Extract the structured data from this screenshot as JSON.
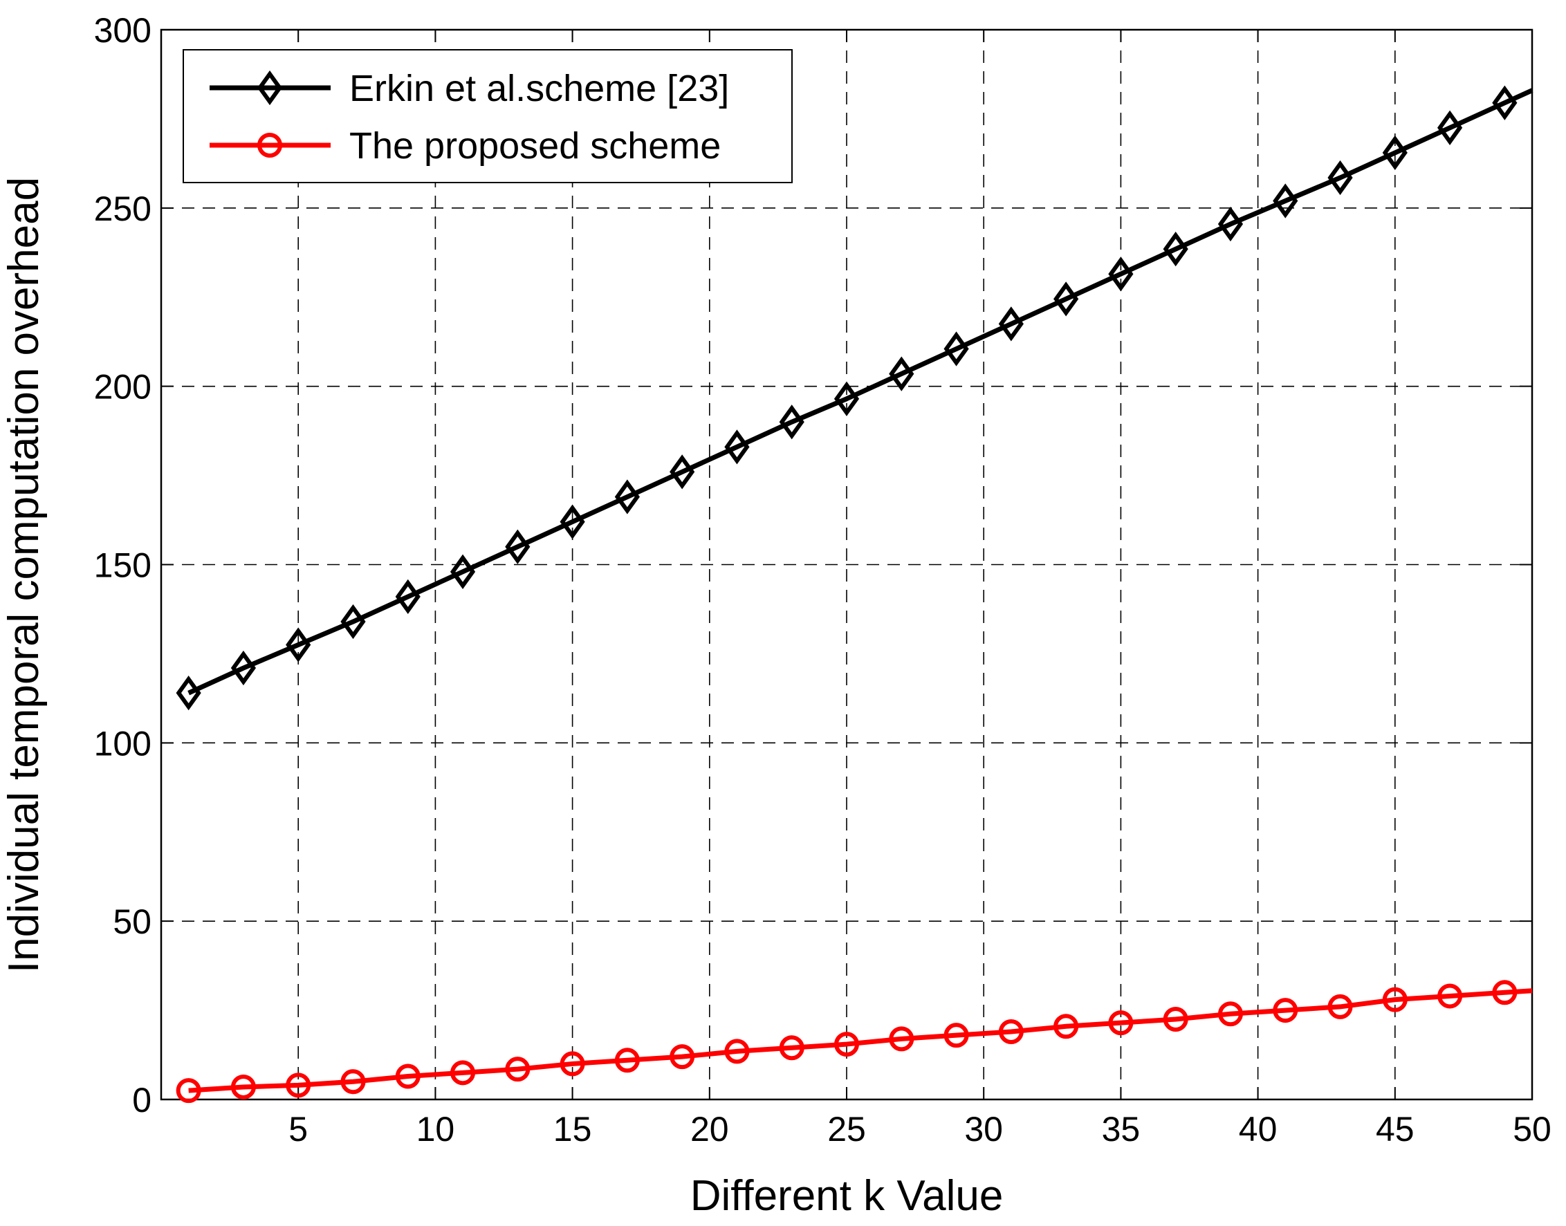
{
  "chart_data": {
    "type": "line",
    "title": "",
    "xlabel": "Different k Value",
    "ylabel": "Individual temporal computation overhead",
    "xlim": [
      0,
      50
    ],
    "ylim": [
      0,
      300
    ],
    "xticks": [
      5,
      10,
      15,
      20,
      25,
      30,
      35,
      40,
      45,
      50
    ],
    "xtick_labels": [
      "5",
      "10",
      "15",
      "20",
      "25",
      "30",
      "35",
      "40",
      "45",
      "50"
    ],
    "yticks": [
      0,
      50,
      100,
      150,
      200,
      250,
      300
    ],
    "ytick_labels": [
      "0",
      "50",
      "100",
      "150",
      "200",
      "250",
      "300"
    ],
    "grid": true,
    "legend_position": "top-left",
    "series": [
      {
        "name": "Erkin et al.scheme [23]",
        "color": "#000000",
        "marker": "diamond",
        "x": [
          1,
          3,
          5,
          7,
          9,
          11,
          13,
          15,
          17,
          19,
          21,
          23,
          25,
          27,
          29,
          31,
          33,
          35,
          37,
          39,
          41,
          43,
          45,
          47,
          49,
          50
        ],
        "y": [
          114,
          121,
          127.5,
          134,
          141,
          148,
          155,
          162,
          169,
          176,
          183,
          190,
          196.5,
          203.5,
          210.5,
          217.5,
          224.5,
          231.5,
          238.5,
          245.5,
          252,
          258.5,
          265.5,
          272.5,
          279.5,
          283
        ]
      },
      {
        "name": "The proposed scheme",
        "color": "#ff0000",
        "marker": "circle",
        "x": [
          1,
          3,
          5,
          7,
          9,
          11,
          13,
          15,
          17,
          19,
          21,
          23,
          25,
          27,
          29,
          31,
          33,
          35,
          37,
          39,
          41,
          43,
          45,
          47,
          49,
          50
        ],
        "y": [
          2.5,
          3.5,
          4,
          5,
          6.5,
          7.5,
          8.5,
          10,
          11,
          12,
          13.5,
          14.5,
          15.5,
          17,
          18,
          19,
          20.5,
          21.5,
          22.5,
          24,
          25,
          26,
          28,
          29,
          30,
          30.5
        ]
      }
    ]
  }
}
